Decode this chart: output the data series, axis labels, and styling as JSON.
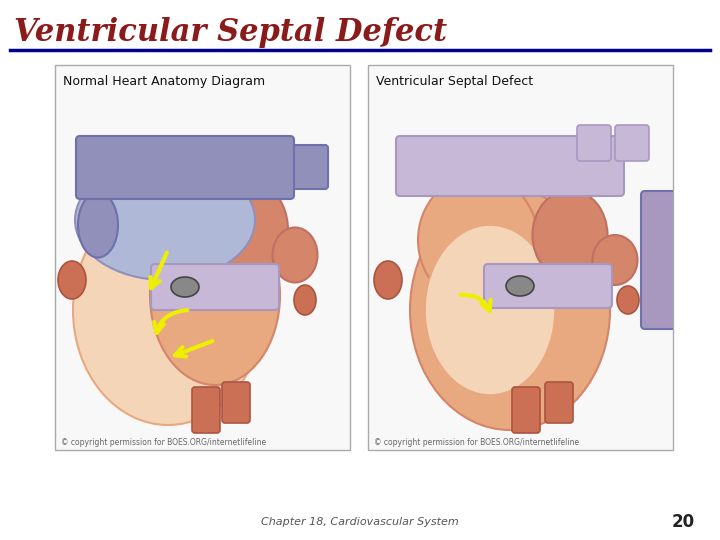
{
  "title": "Ventricular Septal Defect",
  "title_color": "#8B1A1A",
  "title_fontsize": 22,
  "title_fontstyle": "italic",
  "title_fontweight": "bold",
  "divider_color": "#00008B",
  "footer_text": "Chapter 18, Cardiovascular System",
  "footer_number": "20",
  "footer_fontsize": 8,
  "footer_color": "#555555",
  "bg_color": "#FFFFFF",
  "left_label": "Normal Heart Anatomy Diagram",
  "right_label": "Ventricular Septal Defect",
  "copyright": "© copyright permission for BOES.ORG/internetlifeline",
  "box_bg": "#F8F8F8",
  "box_edge": "#AAAAAA",
  "peach_light": "#F5D5B8",
  "peach_mid": "#E8A880",
  "salmon": "#D4856A",
  "salmon_dark": "#C07060",
  "blue_light": "#B0B8D8",
  "blue_mid": "#9090BB",
  "blue_dark": "#7070AA",
  "purple_light": "#C8B8D8",
  "purple_mid": "#A898C0",
  "vessel_orange": "#CC7055",
  "vessel_edge": "#AA5540",
  "yellow": "#EEEE00",
  "gray_valve": "#888888"
}
